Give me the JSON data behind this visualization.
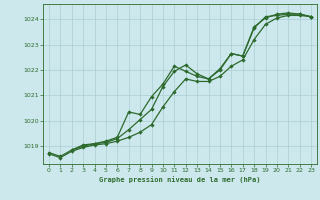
{
  "title": "Graphe pression niveau de la mer (hPa)",
  "background_color": "#cce8ec",
  "line_color": "#2d6a2d",
  "grid_color": "#aacfd4",
  "xlim": [
    -0.5,
    23.5
  ],
  "ylim": [
    1018.3,
    1024.6
  ],
  "yticks": [
    1019,
    1020,
    1021,
    1022,
    1023,
    1024
  ],
  "xticks": [
    0,
    1,
    2,
    3,
    4,
    5,
    6,
    7,
    8,
    9,
    10,
    11,
    12,
    13,
    14,
    15,
    16,
    17,
    18,
    19,
    20,
    21,
    22,
    23
  ],
  "series1_x": [
    0,
    1,
    2,
    3,
    4,
    5,
    6,
    7,
    8,
    9,
    10,
    11,
    12,
    13,
    14,
    15,
    16,
    17,
    18,
    19,
    20,
    21,
    22,
    23
  ],
  "series1_y": [
    1018.75,
    1018.6,
    1018.85,
    1019.0,
    1019.1,
    1019.15,
    1019.3,
    1019.65,
    1020.05,
    1020.45,
    1021.35,
    1021.95,
    1022.2,
    1021.85,
    1021.65,
    1022.0,
    1022.65,
    1022.55,
    1023.7,
    1024.05,
    1024.2,
    1024.25,
    1024.2,
    1024.1
  ],
  "series2_x": [
    0,
    1,
    2,
    3,
    4,
    5,
    6,
    7,
    8,
    9,
    10,
    11,
    12,
    13,
    14,
    15,
    16,
    17,
    18,
    19,
    20,
    21,
    22,
    23
  ],
  "series2_y": [
    1018.7,
    1018.55,
    1018.8,
    1018.95,
    1019.05,
    1019.1,
    1019.2,
    1019.35,
    1019.55,
    1019.85,
    1020.55,
    1021.15,
    1021.65,
    1021.55,
    1021.55,
    1021.75,
    1022.15,
    1022.4,
    1023.2,
    1023.8,
    1024.05,
    1024.15,
    1024.15,
    1024.1
  ],
  "series3_x": [
    2,
    3,
    4,
    5,
    6,
    7,
    8,
    9,
    10,
    11,
    12,
    13,
    14,
    15,
    16,
    17,
    18,
    19,
    20,
    21,
    22,
    23
  ],
  "series3_y": [
    1018.85,
    1019.05,
    1019.1,
    1019.2,
    1019.35,
    1020.35,
    1020.25,
    1020.95,
    1021.45,
    1022.15,
    1021.95,
    1021.75,
    1021.65,
    1022.05,
    1022.65,
    1022.55,
    1023.65,
    1024.1,
    1024.15,
    1024.2,
    1024.2,
    1024.1
  ]
}
